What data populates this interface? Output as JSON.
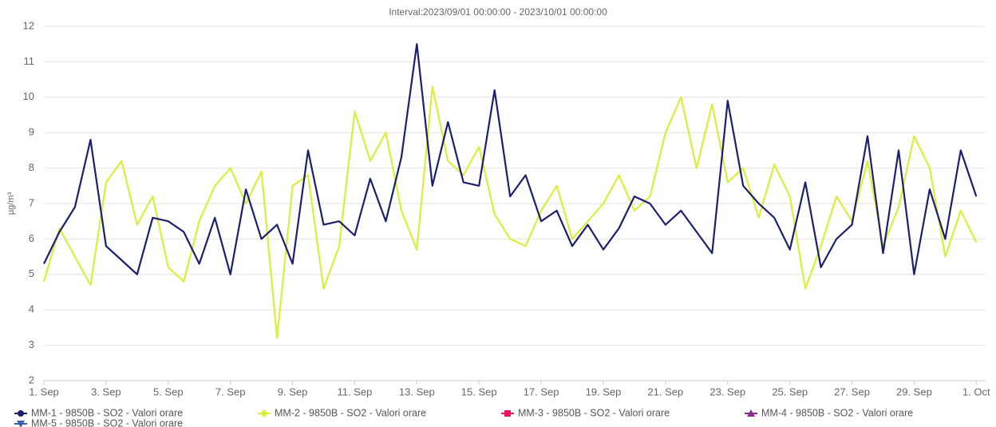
{
  "chart_data": {
    "type": "line",
    "title": "Interval:2023/09/01 00:00:00 - 2023/10/01 00:00:00",
    "y_label": "µg/m³",
    "x": [
      1,
      1.5,
      2,
      2.5,
      3,
      3.5,
      4,
      4.5,
      5,
      5.5,
      6,
      6.5,
      7,
      7.5,
      8,
      8.5,
      9,
      9.5,
      10,
      10.5,
      11,
      11.5,
      12,
      12.5,
      13,
      13.5,
      14,
      14.5,
      15,
      15.5,
      16,
      16.5,
      17,
      17.5,
      18,
      18.5,
      19,
      19.5,
      20,
      20.5,
      21,
      21.5,
      22,
      22.5,
      23,
      23.5,
      24,
      24.5,
      25,
      25.5,
      26,
      26.5,
      27,
      27.5,
      28,
      28.5,
      29,
      29.5,
      30,
      30.5,
      31
    ],
    "xlim": [
      1,
      31.3
    ],
    "xticks": [
      {
        "value": 1,
        "label": "1. Sep"
      },
      {
        "value": 3,
        "label": "3. Sep"
      },
      {
        "value": 5,
        "label": "5. Sep"
      },
      {
        "value": 7,
        "label": "7. Sep"
      },
      {
        "value": 9,
        "label": "9. Sep"
      },
      {
        "value": 11,
        "label": "11. Sep"
      },
      {
        "value": 13,
        "label": "13. Sep"
      },
      {
        "value": 15,
        "label": "15. Sep"
      },
      {
        "value": 17,
        "label": "17. Sep"
      },
      {
        "value": 19,
        "label": "19. Sep"
      },
      {
        "value": 21,
        "label": "21. Sep"
      },
      {
        "value": 23,
        "label": "23. Sep"
      },
      {
        "value": 25,
        "label": "25. Sep"
      },
      {
        "value": 27,
        "label": "27. Sep"
      },
      {
        "value": 29,
        "label": "29. Sep"
      },
      {
        "value": 31,
        "label": "1. Oct"
      }
    ],
    "ylim": [
      2,
      12
    ],
    "yticks": [
      2,
      3,
      4,
      5,
      6,
      7,
      8,
      9,
      10,
      11,
      12
    ],
    "grid": true,
    "legend": "bottom",
    "series": [
      {
        "name": "MM-1 - 9850B - SO2 - Valori orare",
        "color": "#1b1f6e",
        "marker": "circle",
        "values": [
          5.3,
          6.2,
          6.9,
          8.8,
          5.8,
          5.4,
          5.0,
          6.6,
          6.5,
          6.2,
          5.3,
          6.6,
          5.0,
          7.4,
          6.0,
          6.4,
          5.3,
          8.5,
          6.4,
          6.5,
          6.1,
          7.7,
          6.5,
          8.3,
          11.5,
          7.5,
          9.3,
          7.6,
          7.5,
          10.2,
          7.2,
          7.8,
          6.5,
          6.8,
          5.8,
          6.4,
          5.7,
          6.3,
          7.2,
          7.0,
          6.4,
          6.8,
          6.2,
          5.6,
          9.9,
          7.5,
          7.0,
          6.6,
          5.7,
          7.6,
          5.2,
          6.0,
          6.4,
          8.9,
          5.6,
          8.5,
          5.0,
          7.4,
          6.0,
          8.5,
          7.2
        ]
      },
      {
        "name": "MM-2 - 9850B - SO2 - Valori orare",
        "color": "#d6f03c",
        "marker": "diamond",
        "values": [
          4.8,
          6.3,
          5.5,
          4.7,
          7.6,
          8.2,
          6.4,
          7.2,
          5.2,
          4.8,
          6.5,
          7.5,
          8.0,
          7.0,
          7.9,
          3.2,
          7.5,
          7.8,
          4.6,
          5.8,
          9.6,
          8.2,
          9.0,
          6.8,
          5.7,
          10.3,
          8.2,
          7.8,
          8.6,
          6.7,
          6.0,
          5.8,
          6.8,
          7.5,
          6.0,
          6.5,
          7.0,
          7.8,
          6.8,
          7.2,
          9.0,
          10.0,
          8.0,
          9.8,
          7.6,
          8.0,
          6.6,
          8.1,
          7.2,
          4.6,
          5.8,
          7.2,
          6.5,
          8.2,
          5.8,
          6.9,
          8.9,
          8.0,
          5.5,
          6.8,
          5.9
        ]
      },
      {
        "name": "MM-3 - 9850B - SO2 - Valori orare",
        "color": "#e8175d",
        "marker": "square",
        "values": [
          null,
          null,
          null,
          null,
          null,
          null,
          null,
          null,
          null,
          null,
          null,
          null,
          null,
          null,
          null,
          null,
          null,
          null,
          null,
          null,
          null,
          null,
          null,
          null,
          null,
          null,
          null,
          null,
          null,
          null,
          null,
          null,
          null,
          null,
          null,
          null,
          null,
          null,
          null,
          null,
          null,
          null,
          null,
          null,
          null,
          null,
          null,
          null,
          null,
          null,
          null,
          null,
          null,
          null,
          null,
          null,
          null,
          null,
          null,
          null,
          null
        ]
      },
      {
        "name": "MM-4 - 9850B - SO2 - Valori orare",
        "color": "#8e2a8e",
        "marker": "triangle",
        "values": [
          null,
          null,
          null,
          null,
          null,
          null,
          null,
          null,
          null,
          null,
          null,
          null,
          null,
          null,
          null,
          null,
          null,
          null,
          null,
          null,
          null,
          null,
          null,
          null,
          null,
          null,
          null,
          null,
          null,
          null,
          null,
          null,
          null,
          null,
          null,
          null,
          null,
          null,
          null,
          null,
          null,
          null,
          null,
          null,
          null,
          null,
          null,
          null,
          null,
          null,
          null,
          null,
          null,
          null,
          null,
          null,
          null,
          null,
          null,
          null,
          null
        ]
      },
      {
        "name": "MM-5 - 9850B - SO2 - Valori orare",
        "color": "#3a5fb0",
        "marker": "triangle-down",
        "values": [
          null,
          null,
          null,
          null,
          null,
          null,
          null,
          null,
          null,
          null,
          null,
          null,
          null,
          null,
          null,
          null,
          null,
          null,
          null,
          null,
          null,
          null,
          null,
          null,
          null,
          null,
          null,
          null,
          null,
          null,
          null,
          null,
          null,
          null,
          null,
          null,
          null,
          null,
          null,
          null,
          null,
          null,
          null,
          null,
          null,
          null,
          null,
          null,
          null,
          null,
          null,
          null,
          null,
          null,
          null,
          null,
          null,
          null,
          null,
          null,
          null
        ]
      }
    ]
  }
}
